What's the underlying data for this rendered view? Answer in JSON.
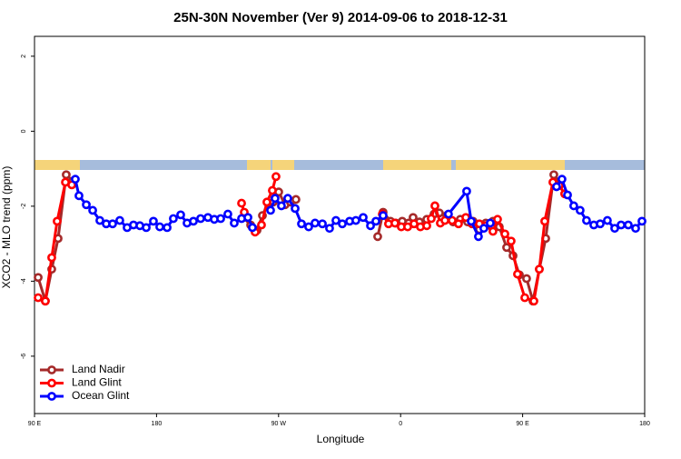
{
  "chart_data": {
    "type": "line",
    "title": "25N-30N November (Ver 9)   2014-09-06 to 2018-12-31",
    "x_label": "Longitude",
    "y_label": "XCO2 - MLO trend (ppm)",
    "xlim": [
      90,
      540
    ],
    "ylim": [
      -7.53,
      2.53
    ],
    "xticks": [
      {
        "value": 90,
        "label": "90 E"
      },
      180,
      {
        "value": 270,
        "label": "90 W"
      },
      {
        "value": 360,
        "label": "0"
      },
      {
        "value": 450,
        "label": "90 E"
      },
      {
        "value": 540,
        "label": "180"
      }
    ],
    "yticks": [
      -6,
      -4,
      -2,
      0,
      2
    ],
    "legend": "bottom-left",
    "series": [
      {
        "name": "Land Nadir",
        "color": "#a52a2a",
        "x": [
          92.7,
          98.0,
          102.7,
          107.4,
          113.4,
          118.1,
          null,
          244.0,
          249.4,
          254.1,
          258.1,
          262.1,
          266.1,
          270.1,
          274.8,
          278.8,
          282.8,
          null,
          343.1,
          347.1,
          352.5,
          356.5,
          361.2,
          365.9,
          369.2,
          373.9,
          379.3,
          384.6,
          388.6,
          394.0,
          398.7,
          404.0,
          409.4,
          413.4,
          418.1,
          422.8,
          428.1,
          432.8,
          438.2,
          442.9,
          447.6,
          452.9,
          457.6,
          462.3,
          467.0,
          473.0,
          477.7
        ],
        "values": [
          -3.9,
          -4.53,
          -3.68,
          -2.86,
          -1.16,
          -1.33,
          null,
          -2.3,
          -2.5,
          -2.64,
          -2.25,
          -1.92,
          -1.89,
          -1.62,
          -1.96,
          -1.89,
          -1.82,
          null,
          -2.81,
          -2.16,
          -2.4,
          -2.45,
          -2.4,
          -2.45,
          -2.3,
          -2.42,
          -2.35,
          -2.21,
          -2.18,
          -2.25,
          -2.42,
          -2.35,
          -2.42,
          -2.4,
          -2.62,
          -2.45,
          -2.4,
          -2.55,
          -3.1,
          -3.32,
          -3.83,
          -3.93,
          -4.53,
          -3.68,
          -2.86,
          -1.16,
          -1.38
        ]
      },
      {
        "name": "Land Glint",
        "color": "#ff0000",
        "x": [
          92.7,
          98.0,
          102.7,
          106.7,
          112.8,
          117.5,
          null,
          242.7,
          244.7,
          252.7,
          257.4,
          261.4,
          265.4,
          268.1,
          null,
          346.5,
          351.1,
          355.8,
          360.5,
          365.2,
          369.9,
          374.6,
          379.3,
          382.6,
          385.3,
          389.3,
          392.7,
          398.0,
          402.7,
          408.1,
          412.7,
          418.1,
          422.8,
          428.1,
          431.5,
          436.9,
          441.5,
          446.2,
          451.6,
          458.3,
          462.3,
          466.3,
          472.3,
          477.0,
          481.0
        ],
        "values": [
          -4.44,
          -4.53,
          -3.37,
          -2.4,
          -1.36,
          -1.43,
          null,
          -1.92,
          -2.16,
          -2.69,
          -2.5,
          -1.89,
          -1.58,
          -1.21,
          null,
          -2.21,
          -2.47,
          -2.45,
          -2.55,
          -2.55,
          -2.47,
          -2.55,
          -2.52,
          -2.33,
          -1.99,
          -2.45,
          -2.38,
          -2.38,
          -2.47,
          -2.3,
          -2.47,
          -2.47,
          -2.52,
          -2.67,
          -2.35,
          -2.74,
          -2.93,
          -3.81,
          -4.44,
          -4.53,
          -3.68,
          -2.4,
          -1.36,
          -1.45,
          -1.67
        ]
      },
      {
        "name": "Ocean Glint",
        "color": "#0000ff",
        "x": [
          120.1,
          122.8,
          128.2,
          132.9,
          138.2,
          142.9,
          147.6,
          152.9,
          158.3,
          163.0,
          167.7,
          172.4,
          177.7,
          182.4,
          187.8,
          192.4,
          197.8,
          202.5,
          207.2,
          212.5,
          217.9,
          222.6,
          227.3,
          232.6,
          237.3,
          242.7,
          247.4,
          250.7,
          null,
          264.1,
          267.4,
          272.1,
          276.8,
          282.2,
          286.9,
          292.2,
          296.9,
          302.3,
          307.6,
          312.3,
          317.0,
          322.4,
          327.0,
          332.4,
          337.8,
          341.8,
          347.1,
          null,
          395.3,
          408.7,
          412.1,
          417.4,
          421.4,
          426.1,
          null,
          475.0,
          479.0,
          483.1,
          487.7,
          492.4,
          497.1,
          502.5,
          507.2,
          512.5,
          517.9,
          522.6,
          527.9,
          533.3,
          538.0
        ],
        "values": [
          -1.28,
          -1.72,
          -1.96,
          -2.11,
          -2.38,
          -2.47,
          -2.47,
          -2.38,
          -2.57,
          -2.5,
          -2.52,
          -2.57,
          -2.4,
          -2.55,
          -2.57,
          -2.33,
          -2.23,
          -2.45,
          -2.4,
          -2.33,
          -2.3,
          -2.35,
          -2.33,
          -2.21,
          -2.45,
          -2.33,
          -2.3,
          -2.57,
          null,
          -2.11,
          -1.79,
          -1.99,
          -1.79,
          -2.06,
          -2.47,
          -2.55,
          -2.45,
          -2.47,
          -2.59,
          -2.38,
          -2.47,
          -2.4,
          -2.38,
          -2.3,
          -2.52,
          -2.4,
          -2.25,
          null,
          -2.21,
          -1.6,
          -2.4,
          -2.81,
          -2.59,
          -2.45,
          null,
          -1.48,
          -1.28,
          -1.7,
          -1.99,
          -2.11,
          -2.38,
          -2.5,
          -2.47,
          -2.38,
          -2.59,
          -2.5,
          -2.5,
          -2.59,
          -2.4
        ]
      }
    ]
  }
}
